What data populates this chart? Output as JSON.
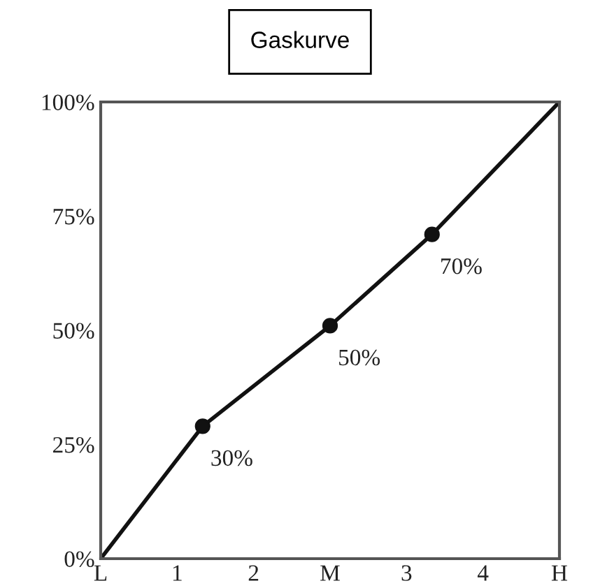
{
  "chart_data": {
    "type": "line",
    "title": "Gaskurve",
    "categories": [
      "L",
      null,
      null,
      "1",
      null,
      null,
      "2",
      null,
      null,
      "M",
      null,
      null,
      "3",
      null,
      null,
      "4",
      null,
      null,
      "H"
    ],
    "series": [
      {
        "color": "#111111",
        "values": [
          0,
          null,
          null,
          null,
          29,
          null,
          null,
          null,
          null,
          51,
          null,
          null,
          null,
          71,
          null,
          null,
          null,
          null,
          100
        ],
        "marker": "none"
      },
      {
        "type": "scatter",
        "color": "#111111",
        "values": [
          null,
          null,
          null,
          null,
          29,
          null,
          null,
          null,
          null,
          51,
          null,
          null,
          null,
          71,
          null,
          null,
          null,
          null,
          null
        ],
        "marker": "circle"
      }
    ],
    "ylim": [
      0,
      100
    ],
    "yticks": [
      {
        "value": 0,
        "label": "0%"
      },
      {
        "value": 25,
        "label": "25%"
      },
      {
        "value": 50,
        "label": "50%"
      },
      {
        "value": 75,
        "label": "75%"
      },
      {
        "value": 100,
        "label": "100%"
      }
    ],
    "annotations": [
      "30%",
      "50%",
      "70%"
    ]
  }
}
